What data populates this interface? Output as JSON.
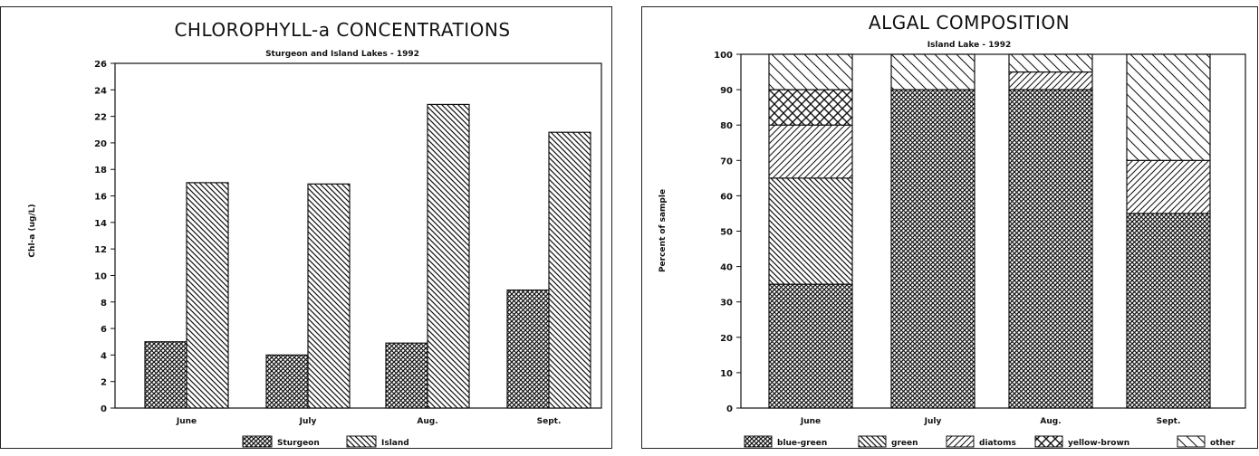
{
  "chart_data": [
    {
      "type": "bar",
      "title": "CHLOROPHYLL-a CONCENTRATIONS",
      "subtitle": "Sturgeon and Island Lakes - 1992",
      "ylabel": "Chl-a (ug/L)",
      "categories": [
        "June",
        "July",
        "Aug.",
        "Sept."
      ],
      "series": [
        {
          "name": "Sturgeon",
          "values": [
            5,
            4,
            4.9,
            8.9
          ]
        },
        {
          "name": "Island",
          "values": [
            17,
            16.9,
            22.9,
            20.8
          ]
        }
      ],
      "ylim": [
        0,
        26
      ],
      "yticks": [
        "0",
        "2",
        "4",
        "6",
        "8",
        "10",
        "12",
        "14",
        "16",
        "18",
        "20",
        "22",
        "24",
        "26"
      ],
      "legend_position": "bottom",
      "grid": false
    },
    {
      "type": "bar",
      "stacked": true,
      "title": "ALGAL COMPOSITION",
      "subtitle": "Island Lake - 1992",
      "ylabel": "Percent of sample",
      "categories": [
        "June",
        "July",
        "Aug.",
        "Sept."
      ],
      "series": [
        {
          "name": "blue-green",
          "values": [
            35,
            90,
            90,
            55
          ]
        },
        {
          "name": "green",
          "values": [
            30,
            0,
            0,
            0
          ]
        },
        {
          "name": "diatoms",
          "values": [
            15,
            0,
            5,
            15
          ]
        },
        {
          "name": "yellow-brown",
          "values": [
            10,
            0,
            0,
            0
          ]
        },
        {
          "name": "other",
          "values": [
            10,
            10,
            5,
            30
          ]
        }
      ],
      "ylim": [
        0,
        100
      ],
      "yticks": [
        "0",
        "10",
        "20",
        "30",
        "40",
        "50",
        "60",
        "70",
        "80",
        "90",
        "100"
      ],
      "legend_position": "bottom",
      "grid": false
    }
  ]
}
